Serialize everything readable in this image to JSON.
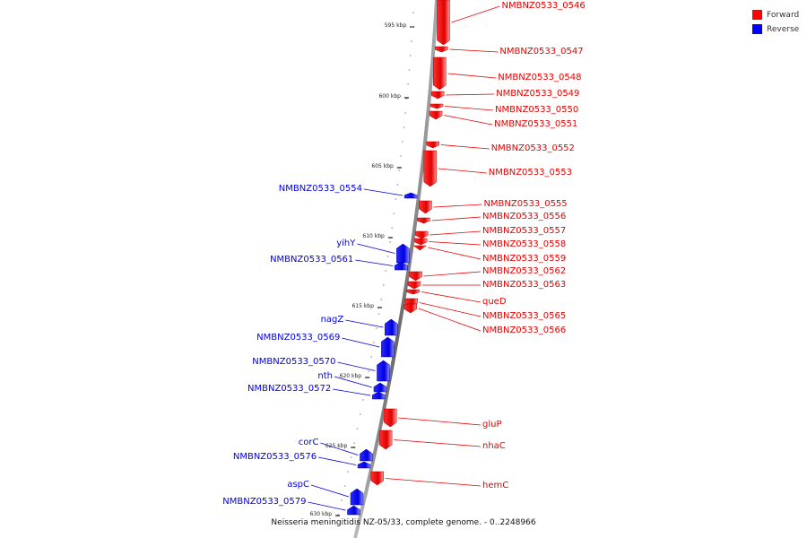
{
  "legend": {
    "forward": {
      "label": "Forward",
      "color": "#ff0000"
    },
    "reverse": {
      "label": "Reverse",
      "color": "#0000ff"
    }
  },
  "caption": "Neisseria meningitidis NZ-05/33, complete genome. - 0..2248966",
  "ticks": [
    "595 kbp",
    "600 kbp",
    "605 kbp",
    "610 kbp",
    "615 kbp",
    "620 kbp",
    "625 kbp",
    "630 kbp"
  ],
  "genes": [
    {
      "name": "NMBNZ0533_0546",
      "strand": "forward"
    },
    {
      "name": "NMBNZ0533_0547",
      "strand": "forward"
    },
    {
      "name": "NMBNZ0533_0548",
      "strand": "forward"
    },
    {
      "name": "NMBNZ0533_0549",
      "strand": "forward"
    },
    {
      "name": "NMBNZ0533_0550",
      "strand": "forward"
    },
    {
      "name": "NMBNZ0533_0551",
      "strand": "forward"
    },
    {
      "name": "NMBNZ0533_0552",
      "strand": "forward"
    },
    {
      "name": "NMBNZ0533_0553",
      "strand": "forward"
    },
    {
      "name": "NMBNZ0533_0554",
      "strand": "reverse"
    },
    {
      "name": "NMBNZ0533_0555",
      "strand": "forward"
    },
    {
      "name": "NMBNZ0533_0556",
      "strand": "forward"
    },
    {
      "name": "NMBNZ0533_0557",
      "strand": "forward"
    },
    {
      "name": "NMBNZ0533_0558",
      "strand": "forward"
    },
    {
      "name": "yihY",
      "strand": "reverse"
    },
    {
      "name": "NMBNZ0533_0559",
      "strand": "forward"
    },
    {
      "name": "NMBNZ0533_0561",
      "strand": "reverse"
    },
    {
      "name": "NMBNZ0533_0562",
      "strand": "forward"
    },
    {
      "name": "NMBNZ0533_0563",
      "strand": "forward"
    },
    {
      "name": "queD",
      "strand": "forward"
    },
    {
      "name": "NMBNZ0533_0565",
      "strand": "forward"
    },
    {
      "name": "NMBNZ0533_0566",
      "strand": "forward"
    },
    {
      "name": "nagZ",
      "strand": "reverse"
    },
    {
      "name": "NMBNZ0533_0569",
      "strand": "reverse"
    },
    {
      "name": "NMBNZ0533_0570",
      "strand": "reverse"
    },
    {
      "name": "nth",
      "strand": "reverse"
    },
    {
      "name": "NMBNZ0533_0572",
      "strand": "reverse"
    },
    {
      "name": "gluP",
      "strand": "forward"
    },
    {
      "name": "nhaC",
      "strand": "forward"
    },
    {
      "name": "corC",
      "strand": "reverse"
    },
    {
      "name": "NMBNZ0533_0576",
      "strand": "reverse"
    },
    {
      "name": "hemC",
      "strand": "forward"
    },
    {
      "name": "aspC",
      "strand": "reverse"
    },
    {
      "name": "NMBNZ0533_0579",
      "strand": "reverse"
    }
  ]
}
